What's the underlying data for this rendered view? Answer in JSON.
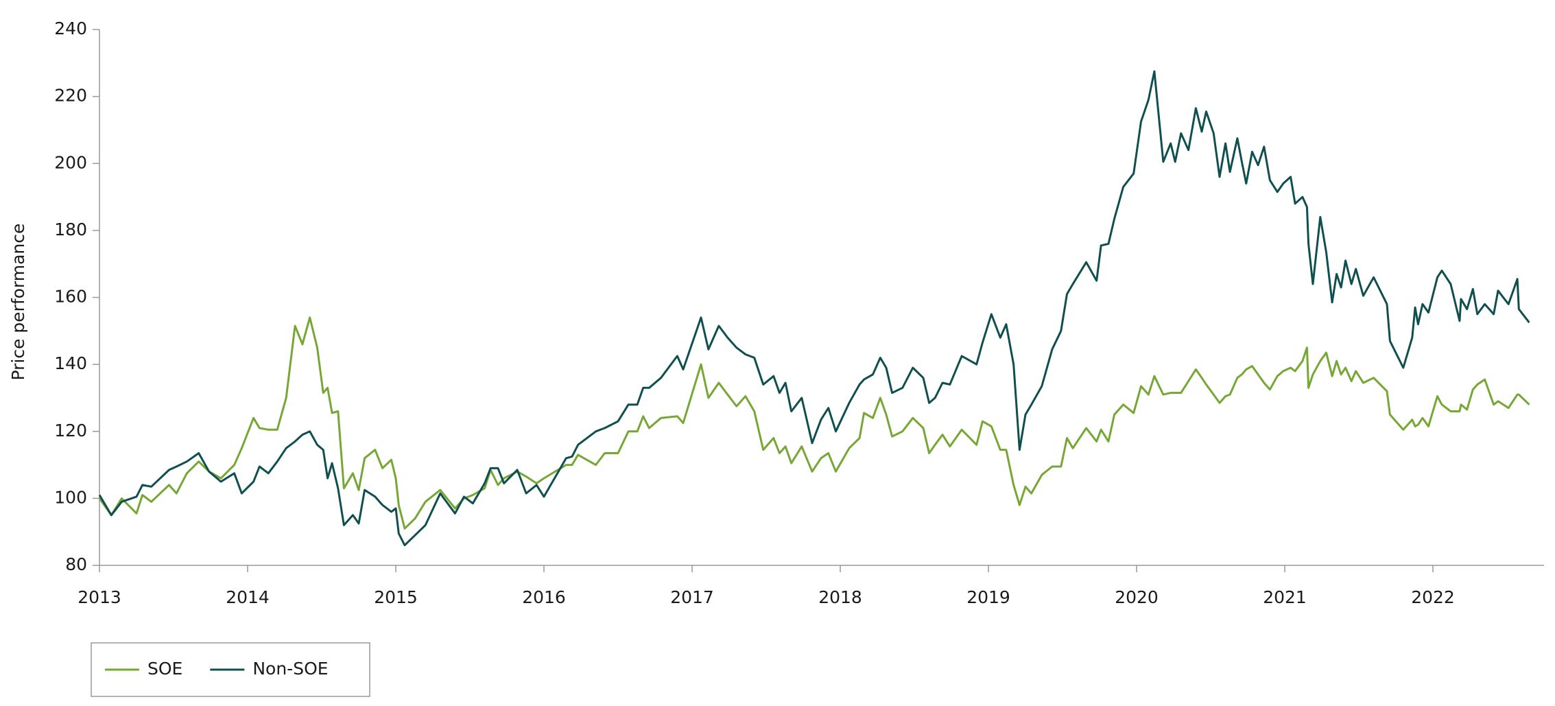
{
  "chart_data": {
    "type": "line",
    "y_label": "Price performance",
    "x": [
      2013.0,
      2013.08,
      2013.15,
      2013.25,
      2013.29,
      2013.35,
      2013.47,
      2013.52,
      2013.59,
      2013.67,
      2013.74,
      2013.82,
      2013.91,
      2013.96,
      2014.04,
      2014.08,
      2014.14,
      2014.2,
      2014.26,
      2014.32,
      2014.37,
      2014.42,
      2014.47,
      2014.51,
      2014.54,
      2014.57,
      2014.61,
      2014.65,
      2014.71,
      2014.75,
      2014.79,
      2014.86,
      2014.91,
      2014.97,
      2015.0,
      2015.02,
      2015.06,
      2015.13,
      2015.2,
      2015.3,
      2015.4,
      2015.46,
      2015.52,
      2015.6,
      2015.64,
      2015.69,
      2015.73,
      2015.82,
      2015.88,
      2015.95,
      2016.0,
      2016.15,
      2016.19,
      2016.23,
      2016.35,
      2016.41,
      2016.5,
      2016.57,
      2016.63,
      2016.67,
      2016.71,
      2016.79,
      2016.9,
      2016.94,
      2017.06,
      2017.11,
      2017.18,
      2017.24,
      2017.3,
      2017.36,
      2017.42,
      2017.48,
      2017.55,
      2017.59,
      2017.63,
      2017.67,
      2017.74,
      2017.81,
      2017.87,
      2017.92,
      2017.97,
      2018.06,
      2018.13,
      2018.16,
      2018.22,
      2018.27,
      2018.31,
      2018.35,
      2018.42,
      2018.49,
      2018.56,
      2018.6,
      2018.64,
      2018.69,
      2018.74,
      2018.82,
      2018.92,
      2018.96,
      2019.02,
      2019.08,
      2019.12,
      2019.17,
      2019.21,
      2019.25,
      2019.29,
      2019.36,
      2019.43,
      2019.49,
      2019.53,
      2019.57,
      2019.66,
      2019.73,
      2019.76,
      2019.81,
      2019.85,
      2019.91,
      2019.98,
      2020.03,
      2020.08,
      2020.12,
      2020.18,
      2020.23,
      2020.26,
      2020.3,
      2020.35,
      2020.4,
      2020.44,
      2020.47,
      2020.52,
      2020.56,
      2020.6,
      2020.63,
      2020.68,
      2020.71,
      2020.74,
      2020.78,
      2020.82,
      2020.86,
      2020.9,
      2020.95,
      2020.99,
      2021.04,
      2021.07,
      2021.12,
      2021.15,
      2021.16,
      2021.19,
      2021.24,
      2021.28,
      2021.32,
      2021.35,
      2021.38,
      2021.41,
      2021.45,
      2021.48,
      2021.53,
      2021.6,
      2021.69,
      2021.71,
      2021.8,
      2021.86,
      2021.88,
      2021.9,
      2021.93,
      2021.97,
      2022.03,
      2022.06,
      2022.12,
      2022.18,
      2022.19,
      2022.23,
      2022.27,
      2022.3,
      2022.35,
      2022.41,
      2022.44,
      2022.51,
      2022.57,
      2022.58,
      2022.65
    ],
    "series": [
      {
        "name": "SOE",
        "color": "#76a734",
        "values": [
          100,
          95,
          100,
          95.5,
          101,
          99,
          104,
          101.5,
          107.5,
          111,
          108,
          106,
          110,
          115,
          124,
          121,
          120.5,
          120.5,
          130,
          151.5,
          146,
          154,
          145,
          131.5,
          133,
          125.5,
          126,
          103,
          107.5,
          102.5,
          112,
          114.5,
          109,
          111.5,
          106,
          98,
          91,
          94,
          99,
          102.5,
          97,
          100,
          101,
          103,
          108.5,
          104,
          106,
          108,
          106.5,
          104.5,
          106,
          110,
          110,
          113,
          110,
          113.5,
          113.5,
          120,
          120,
          124.5,
          121,
          124,
          124.5,
          122.5,
          140,
          130,
          134.5,
          131,
          127.5,
          130.5,
          126,
          114.5,
          118,
          113.5,
          115.5,
          110.5,
          115.5,
          108,
          112,
          113.5,
          108,
          115,
          118,
          125.5,
          124,
          130,
          125,
          118.5,
          120,
          124,
          121,
          113.5,
          116,
          119,
          115.5,
          120.5,
          116,
          123,
          121.5,
          114.5,
          114.5,
          104,
          98,
          103.5,
          101.5,
          107,
          109.5,
          109.5,
          118,
          115,
          121,
          117,
          120.5,
          117,
          125,
          128,
          125.5,
          133.5,
          131,
          136.5,
          131,
          131.5,
          131.5,
          131.5,
          135,
          138.5,
          136,
          134,
          131,
          128.5,
          130.5,
          131,
          136,
          137,
          138.5,
          139.5,
          137,
          134.5,
          132.5,
          136.5,
          138,
          139,
          138,
          141,
          145,
          133,
          137,
          141,
          143.5,
          136.5,
          141,
          137,
          139,
          135,
          138,
          134.5,
          136,
          132,
          125,
          120.5,
          123.5,
          121.5,
          122,
          124,
          121.5,
          130.5,
          128,
          126,
          126,
          128,
          126.5,
          132.5,
          134,
          135.5,
          128,
          129,
          127,
          131,
          131,
          128
        ]
      },
      {
        "name": "Non-SOE",
        "color": "#0f4f4f",
        "values": [
          101,
          95,
          99,
          100.5,
          104,
          103.5,
          108.5,
          109.5,
          111,
          113.5,
          108,
          105,
          107.5,
          101.5,
          105,
          109.5,
          107.5,
          111,
          115,
          117,
          119,
          120,
          116,
          114.5,
          106,
          110.5,
          103,
          92,
          95,
          92.5,
          102.5,
          100.5,
          98,
          96,
          97,
          89.5,
          86,
          89,
          92,
          101.5,
          95.5,
          100.5,
          98.5,
          104.5,
          109,
          109,
          104.5,
          108.5,
          101.5,
          104,
          100.5,
          112,
          112.5,
          116,
          120,
          121,
          123,
          128,
          128,
          133,
          133,
          136,
          142.5,
          138.5,
          154,
          144.5,
          151.5,
          148,
          145,
          143,
          142,
          134,
          136.5,
          131.5,
          134.5,
          126,
          130,
          116.5,
          123.5,
          127,
          120,
          128.5,
          134,
          135.5,
          137,
          142,
          139,
          131.5,
          133,
          139,
          136,
          128.5,
          130,
          134.5,
          134,
          142.5,
          140,
          146.5,
          155,
          148,
          152,
          140,
          114.5,
          125,
          128,
          133.5,
          144.5,
          150,
          161,
          164,
          170.5,
          165,
          175.5,
          176,
          183.5,
          193,
          197,
          212.5,
          219,
          227.5,
          200.5,
          206,
          200.5,
          209,
          204,
          216.5,
          209.5,
          215.5,
          209,
          196,
          206,
          197.5,
          207.5,
          200.5,
          194,
          203.5,
          199.5,
          205,
          195,
          191.5,
          194,
          196,
          188,
          190,
          187,
          176,
          164,
          184,
          173.5,
          158.5,
          167,
          163,
          171,
          164,
          168.5,
          160.5,
          166,
          158,
          147,
          139,
          148,
          157,
          152,
          158,
          155.5,
          166,
          168,
          164,
          153,
          159.5,
          156.5,
          162.5,
          155,
          158,
          155,
          162,
          158,
          165.5,
          156.5,
          152.5
        ]
      }
    ],
    "xlim": [
      2013,
      2022.75
    ],
    "xticks": [
      2013,
      2014,
      2015,
      2016,
      2017,
      2018,
      2019,
      2020,
      2021,
      2022
    ],
    "ylim": [
      80,
      240
    ],
    "yticks": [
      80,
      100,
      120,
      140,
      160,
      180,
      200,
      220,
      240
    ],
    "legend": "bottom-left"
  }
}
